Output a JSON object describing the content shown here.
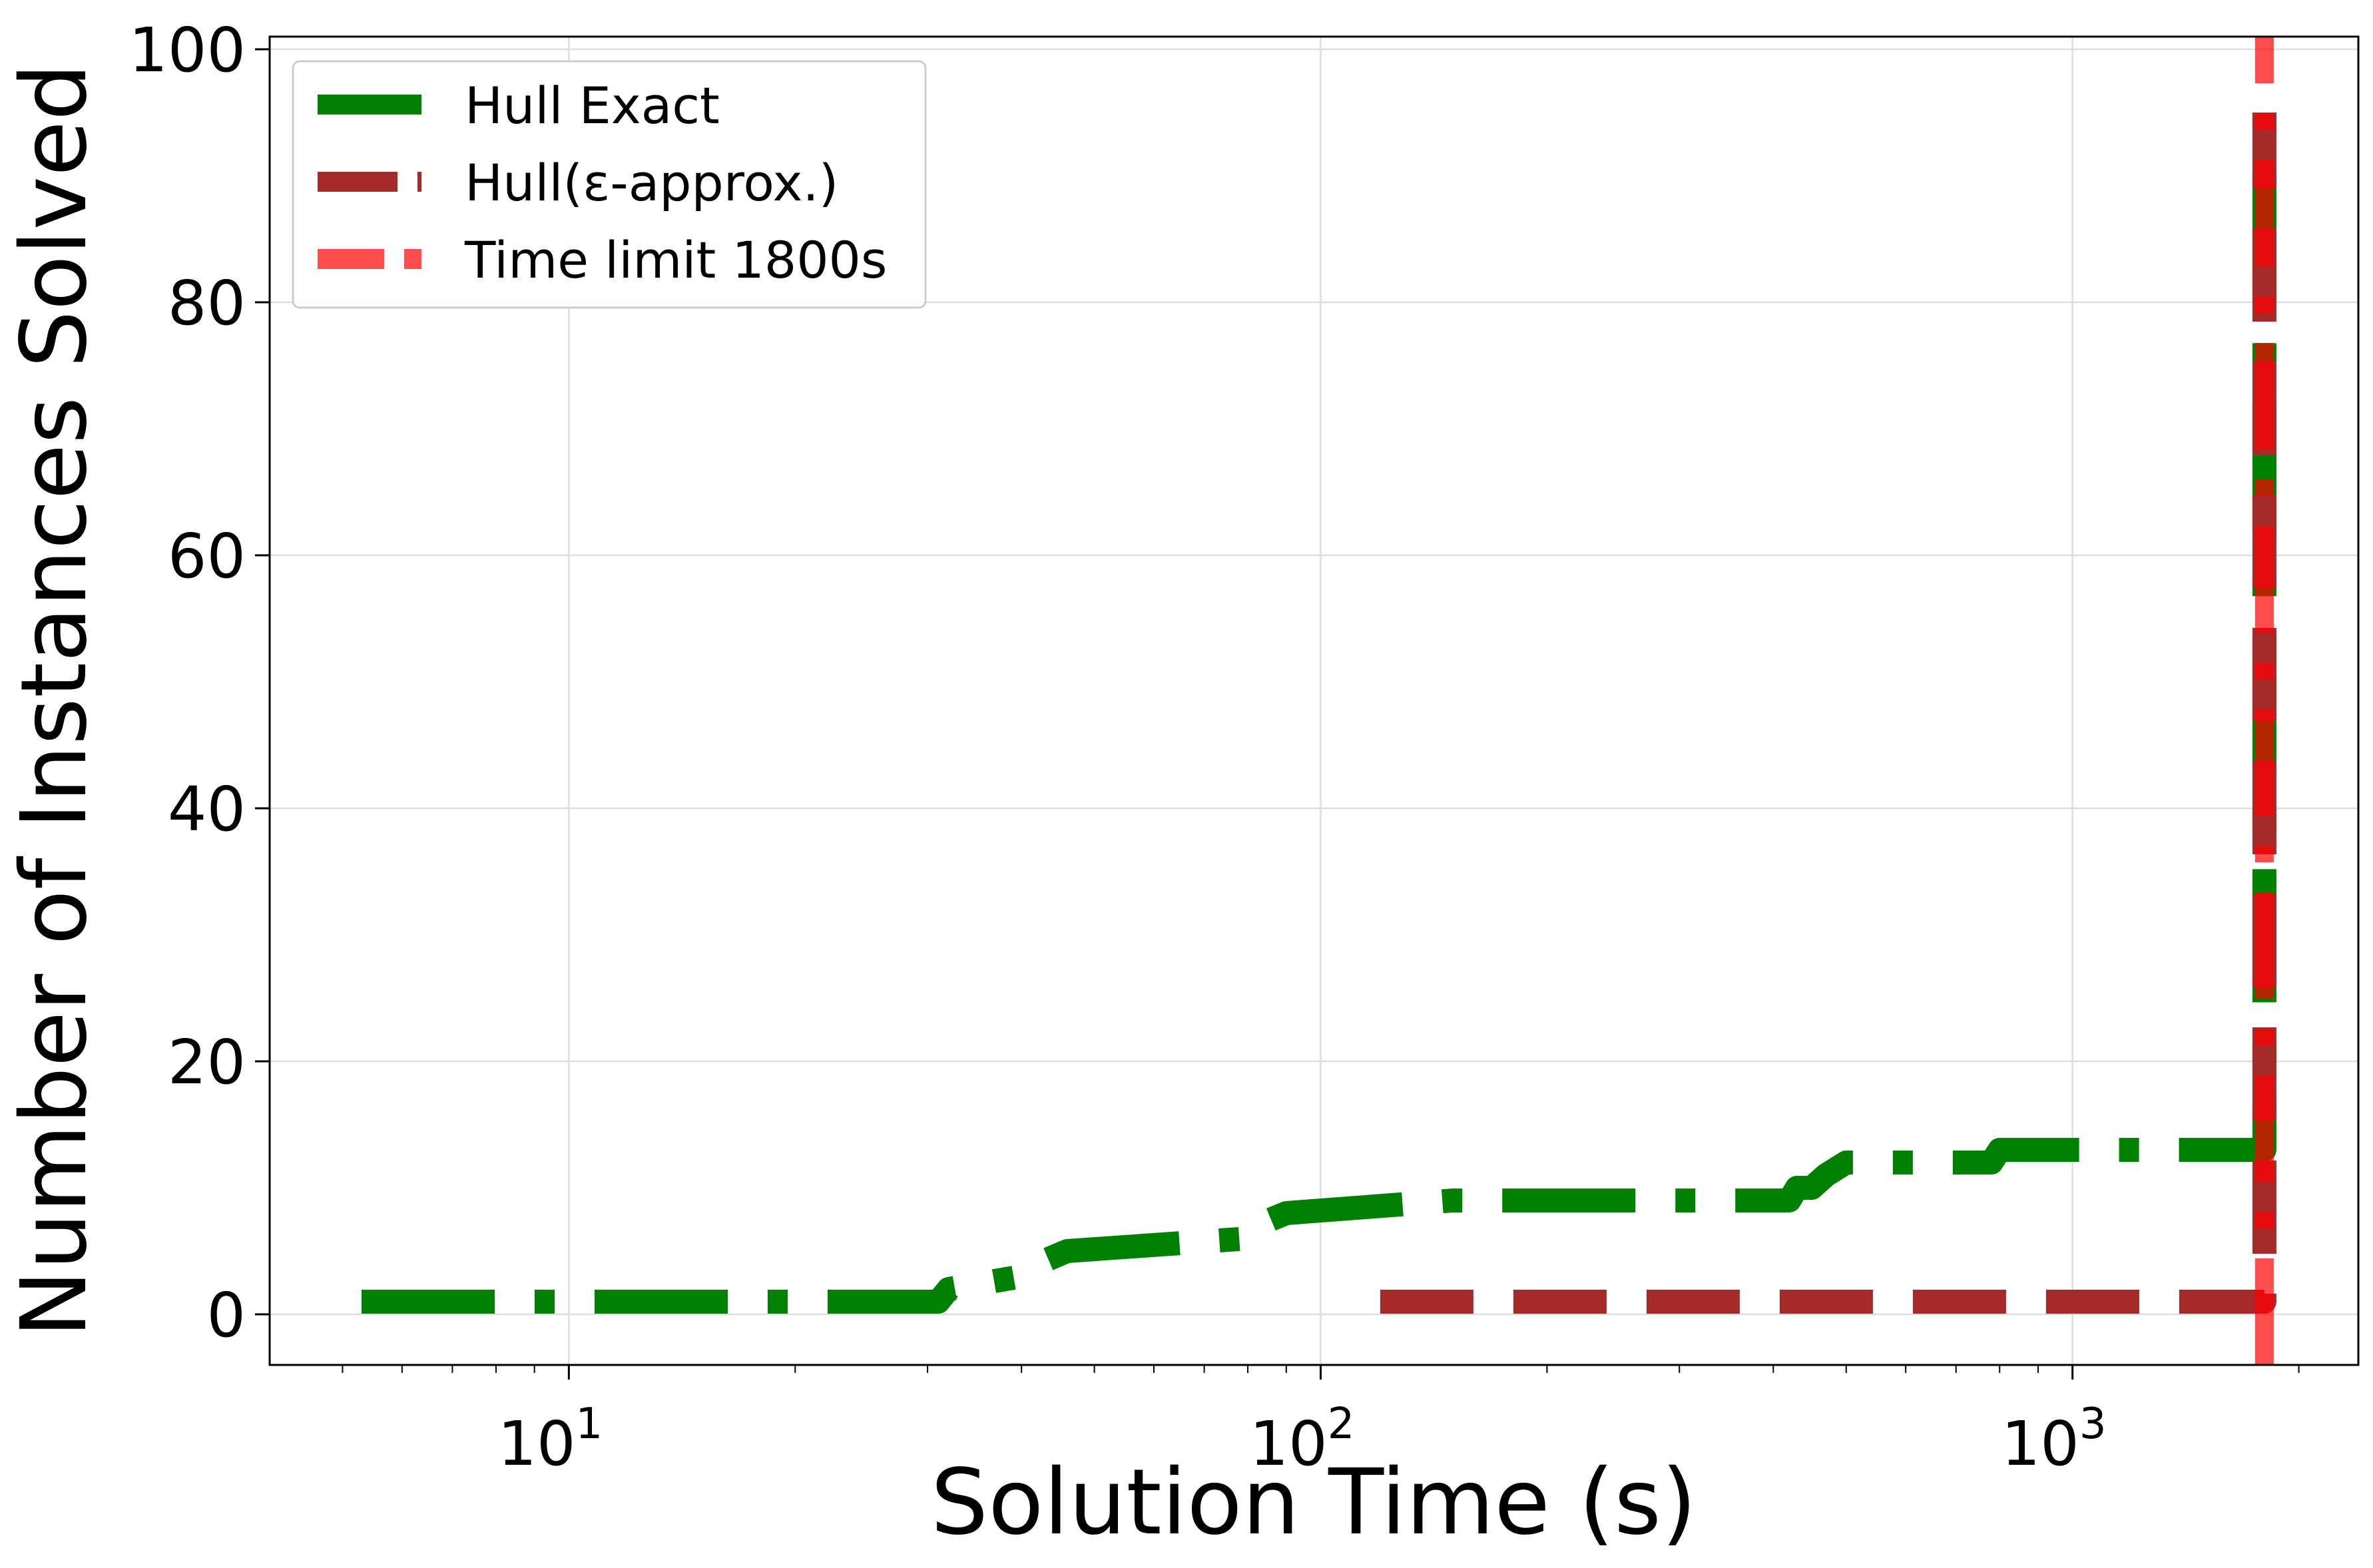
{
  "chart_data": {
    "type": "line",
    "xlabel": "Solution Time (s)",
    "ylabel": "Number of Instances Solved",
    "xscale": "log",
    "xlim": [
      4.0,
      2400
    ],
    "ylim": [
      -4,
      101
    ],
    "grid": true,
    "legend_position": "top-left",
    "x_ticks": [
      {
        "value": 10,
        "base": "10",
        "exp": "1"
      },
      {
        "value": 100,
        "base": "10",
        "exp": "2"
      },
      {
        "value": 1000,
        "base": "10",
        "exp": "3"
      }
    ],
    "y_ticks": [
      0,
      20,
      40,
      60,
      80,
      100
    ],
    "series": [
      {
        "name": "Hull Exact",
        "color": "#008000",
        "style": "dash-dot",
        "points": [
          [
            5.3,
            1
          ],
          [
            31,
            1
          ],
          [
            32,
            2
          ],
          [
            40,
            3
          ],
          [
            42,
            4
          ],
          [
            46,
            5
          ],
          [
            80,
            6
          ],
          [
            82,
            7
          ],
          [
            90,
            8
          ],
          [
            150,
            9
          ],
          [
            420,
            9
          ],
          [
            430,
            10
          ],
          [
            450,
            10
          ],
          [
            470,
            11
          ],
          [
            500,
            12
          ],
          [
            780,
            12
          ],
          [
            800,
            13
          ],
          [
            1800,
            13
          ],
          [
            1800,
            95
          ]
        ]
      },
      {
        "name": "Hull(ε-approx.)",
        "color": "#a52a2a",
        "style": "dashed",
        "points": [
          [
            120,
            1
          ],
          [
            1800,
            1
          ],
          [
            1800,
            95
          ]
        ]
      },
      {
        "name": "Time limit 1800s",
        "color": "#ff0000",
        "style": "dash-dot-vertical",
        "points": [
          [
            1800,
            -4
          ],
          [
            1800,
            101
          ]
        ]
      }
    ]
  }
}
